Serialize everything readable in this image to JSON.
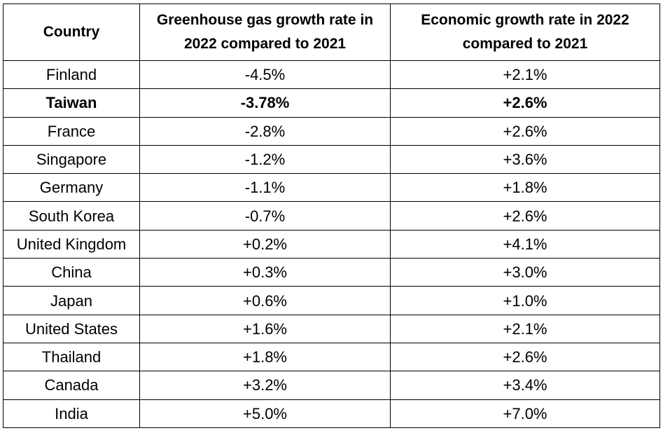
{
  "chart_data": {
    "type": "table",
    "columns": [
      "Country",
      "Greenhouse gas growth rate in 2022 compared to 2021",
      "Economic growth rate in 2022 compared to 2021"
    ],
    "rows": [
      {
        "country": "Finland",
        "ghg": "-4.5%",
        "econ": "+2.1%",
        "bold": false
      },
      {
        "country": "Taiwan",
        "ghg": "-3.78%",
        "econ": "+2.6%",
        "bold": true
      },
      {
        "country": "France",
        "ghg": "-2.8%",
        "econ": "+2.6%",
        "bold": false
      },
      {
        "country": "Singapore",
        "ghg": "-1.2%",
        "econ": "+3.6%",
        "bold": false
      },
      {
        "country": "Germany",
        "ghg": "-1.1%",
        "econ": "+1.8%",
        "bold": false
      },
      {
        "country": "South Korea",
        "ghg": "-0.7%",
        "econ": "+2.6%",
        "bold": false
      },
      {
        "country": "United Kingdom",
        "ghg": "+0.2%",
        "econ": "+4.1%",
        "bold": false
      },
      {
        "country": "China",
        "ghg": "+0.3%",
        "econ": "+3.0%",
        "bold": false
      },
      {
        "country": "Japan",
        "ghg": "+0.6%",
        "econ": "+1.0%",
        "bold": false
      },
      {
        "country": "United States",
        "ghg": "+1.6%",
        "econ": "+2.1%",
        "bold": false
      },
      {
        "country": "Thailand",
        "ghg": "+1.8%",
        "econ": "+2.6%",
        "bold": false
      },
      {
        "country": "Canada",
        "ghg": "+3.2%",
        "econ": "+3.4%",
        "bold": false
      },
      {
        "country": "India",
        "ghg": "+5.0%",
        "econ": "+7.0%",
        "bold": false
      }
    ]
  }
}
